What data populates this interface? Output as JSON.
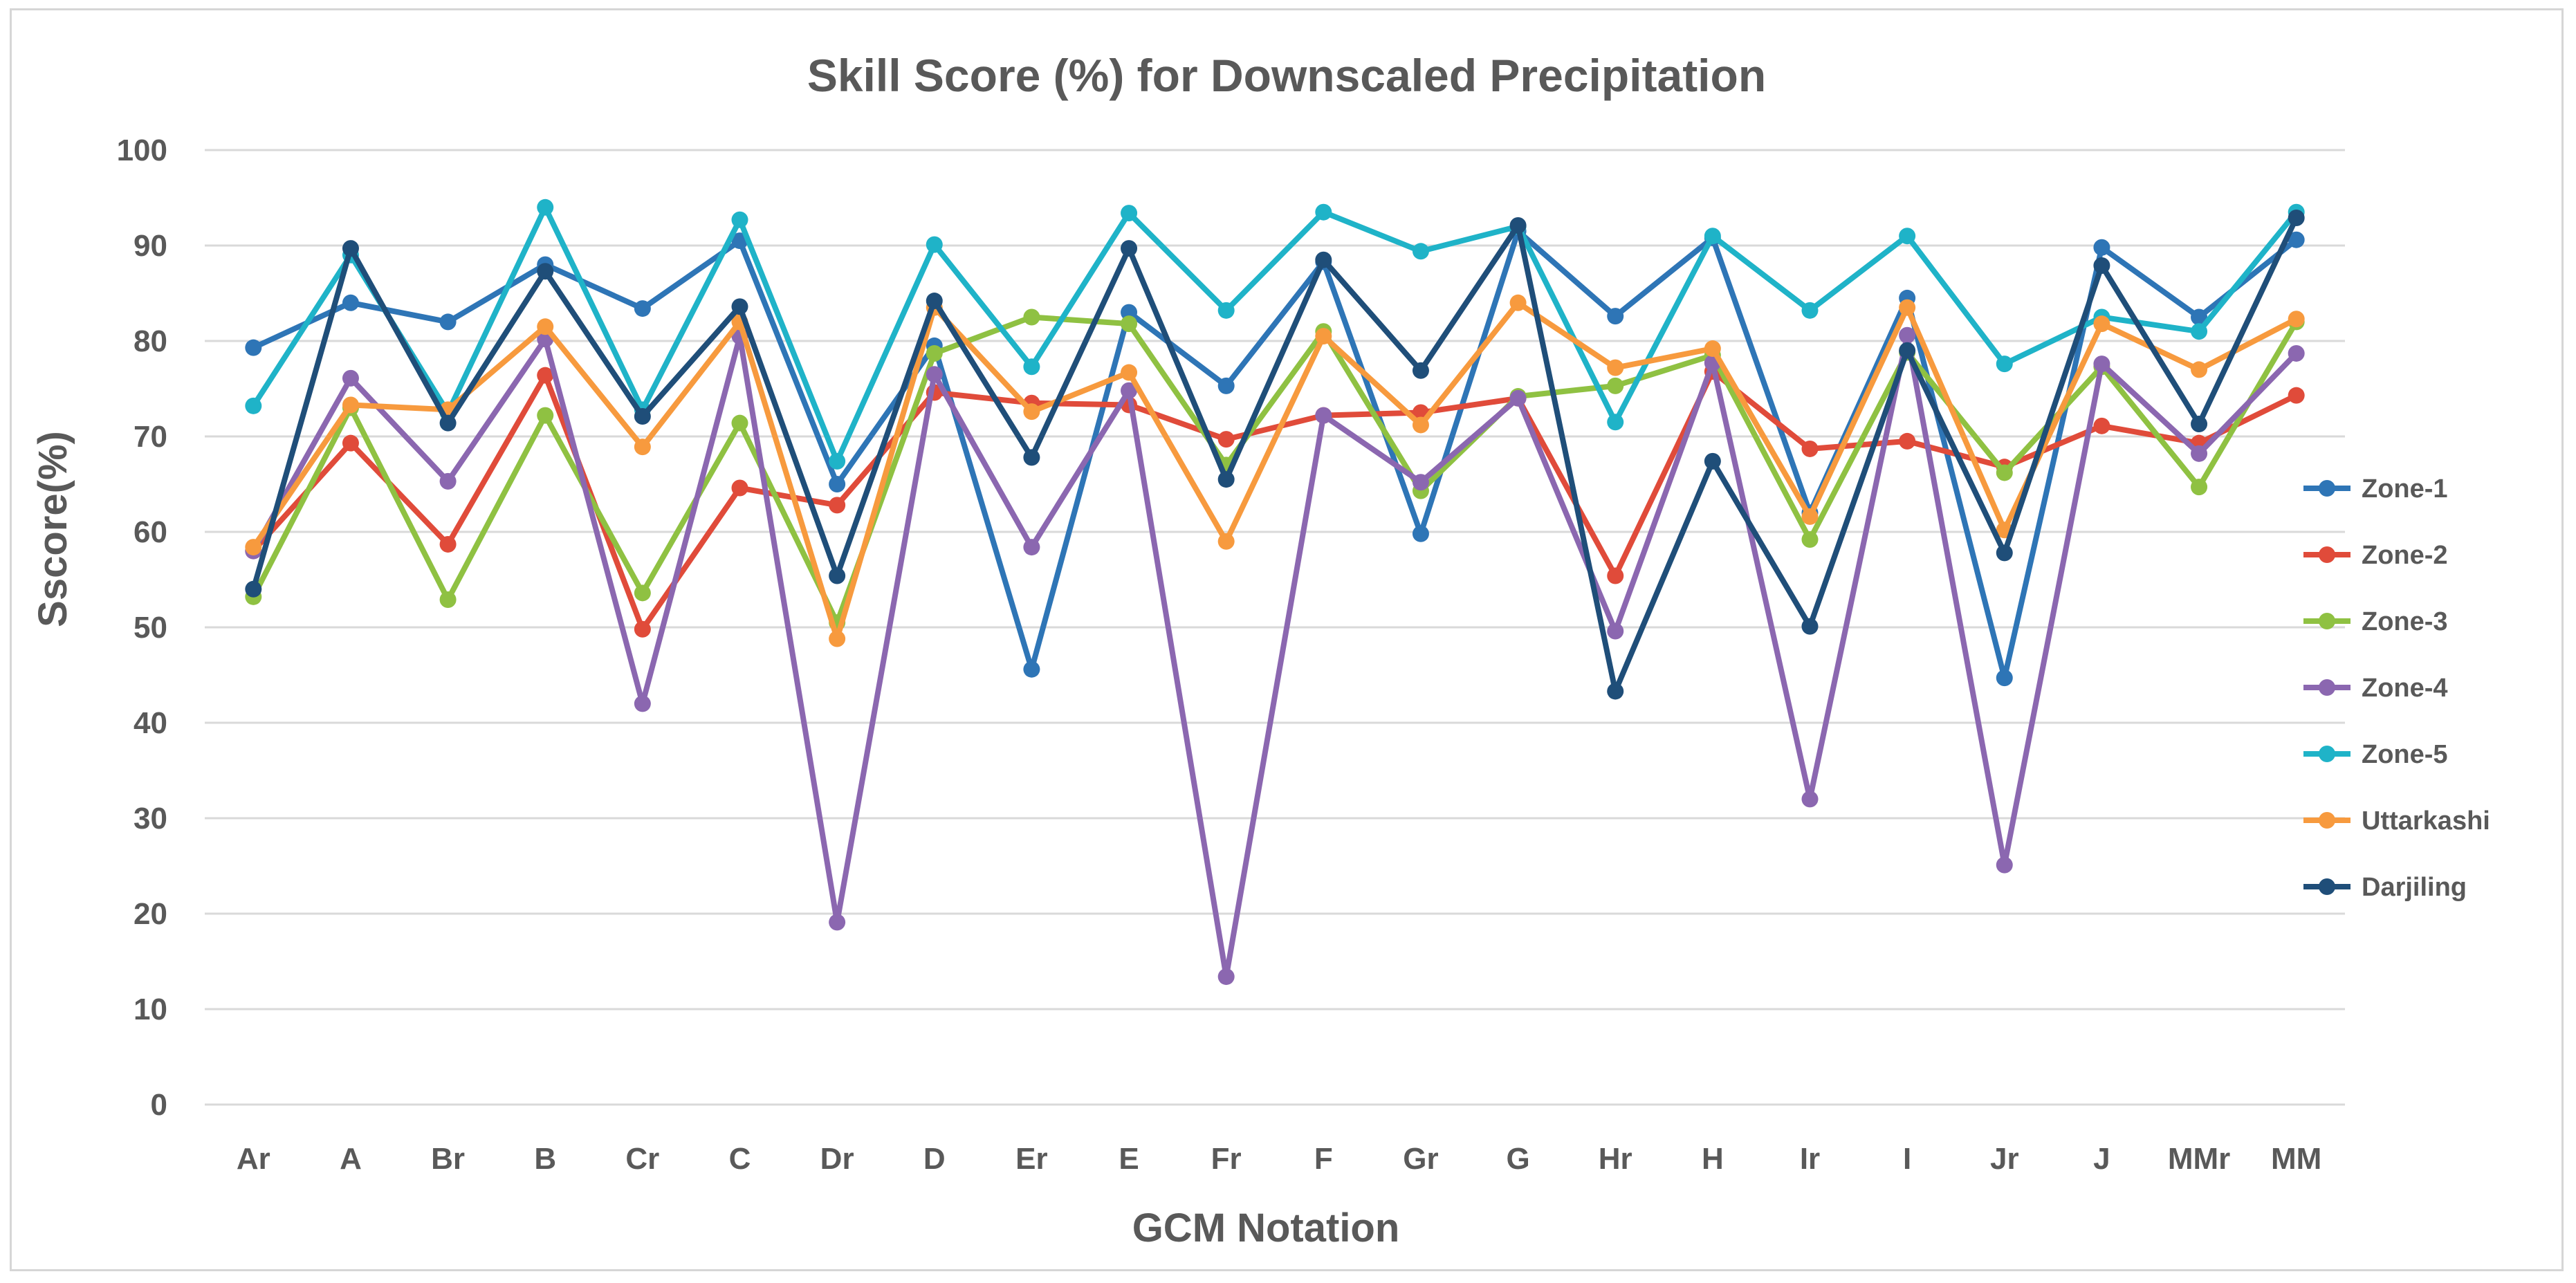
{
  "chart_data": {
    "type": "line",
    "title": "Skill Score (%) for Downscaled Precipitation",
    "xlabel": "GCM Notation",
    "ylabel": "Sscore(%)",
    "ylim": [
      0,
      100
    ],
    "yticks": [
      0,
      10,
      20,
      30,
      40,
      50,
      60,
      70,
      80,
      90,
      100
    ],
    "grid": true,
    "legend_position": "right",
    "categories": [
      "Ar",
      "A",
      "Br",
      "B",
      "Cr",
      "C",
      "Dr",
      "D",
      "Er",
      "E",
      "Fr",
      "F",
      "Gr",
      "G",
      "Hr",
      "H",
      "Ir",
      "I",
      "Jr",
      "J",
      "MMr",
      "MM"
    ],
    "series": [
      {
        "name": "Zone-1",
        "color": "#2e75b6",
        "values": [
          79.3,
          84.0,
          82.0,
          88.0,
          83.4,
          90.5,
          65.0,
          79.5,
          45.6,
          83.0,
          75.3,
          88.3,
          59.8,
          91.5,
          82.6,
          90.8,
          62.0,
          84.5,
          44.7,
          89.8,
          82.5,
          90.6
        ]
      },
      {
        "name": "Zone-2",
        "color": "#e04b3a",
        "values": [
          58.0,
          69.3,
          58.7,
          76.4,
          49.8,
          64.6,
          62.8,
          74.6,
          73.5,
          73.3,
          69.7,
          72.2,
          72.5,
          74.0,
          55.4,
          76.8,
          68.7,
          69.5,
          66.8,
          71.1,
          69.3,
          74.3
        ]
      },
      {
        "name": "Zone-3",
        "color": "#8fc142",
        "values": [
          53.2,
          73.0,
          52.9,
          72.2,
          53.6,
          71.4,
          50.5,
          78.7,
          82.5,
          81.8,
          67.0,
          81.0,
          64.3,
          74.2,
          75.3,
          78.5,
          59.2,
          78.8,
          66.2,
          77.3,
          64.7,
          82.0
        ]
      },
      {
        "name": "Zone-4",
        "color": "#8b67b0",
        "values": [
          58.0,
          76.1,
          65.3,
          80.2,
          42.0,
          80.5,
          19.1,
          76.5,
          58.4,
          74.8,
          13.4,
          72.2,
          65.2,
          74.0,
          49.6,
          77.7,
          32.0,
          80.6,
          25.1,
          77.6,
          68.2,
          78.7
        ]
      },
      {
        "name": "Zone-5",
        "color": "#1fb3c8",
        "values": [
          73.2,
          89.0,
          72.5,
          94.0,
          72.8,
          92.7,
          67.4,
          90.1,
          77.3,
          93.4,
          83.2,
          93.5,
          89.4,
          92.0,
          71.5,
          91.0,
          83.2,
          91.0,
          77.6,
          82.5,
          81.0,
          93.5
        ]
      },
      {
        "name": "Uttarkashi",
        "color": "#f79a3e",
        "values": [
          58.4,
          73.3,
          72.8,
          81.5,
          68.9,
          82.0,
          48.8,
          83.5,
          72.6,
          76.7,
          59.0,
          80.5,
          71.2,
          84.0,
          77.2,
          79.2,
          61.6,
          83.5,
          60.2,
          81.8,
          77.0,
          82.3
        ]
      },
      {
        "name": "Darjiling",
        "color": "#1f4e79",
        "values": [
          54.0,
          89.7,
          71.4,
          87.3,
          72.1,
          83.6,
          55.4,
          84.2,
          67.8,
          89.7,
          65.5,
          88.5,
          76.9,
          92.1,
          43.3,
          67.4,
          50.1,
          79.0,
          57.8,
          87.9,
          71.3,
          92.9
        ]
      }
    ]
  }
}
